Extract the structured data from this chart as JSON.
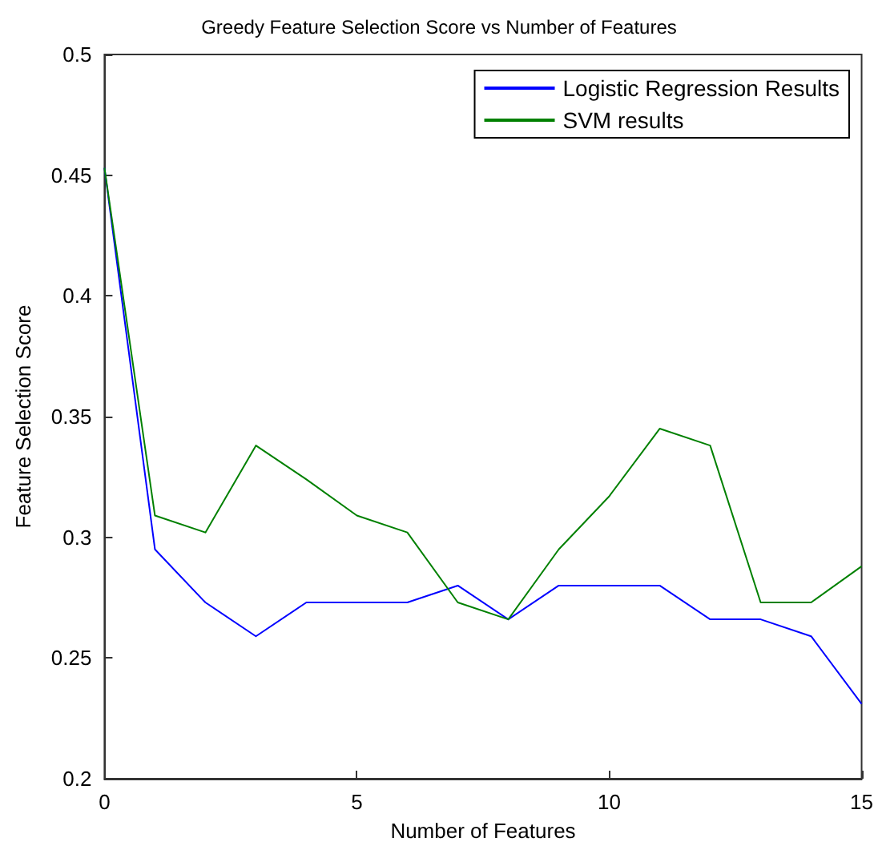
{
  "chart_data": {
    "type": "line",
    "title": "Greedy Feature Selection Score vs Number of Features",
    "xlabel": "Number of Features",
    "ylabel": "Feature Selection Score",
    "x": [
      0,
      1,
      2,
      3,
      4,
      5,
      6,
      7,
      8,
      9,
      10,
      11,
      12,
      13,
      14,
      15
    ],
    "series": [
      {
        "name": "Logistic Regression Results",
        "color": "#0000ff",
        "values": [
          0.453,
          0.295,
          0.273,
          0.259,
          0.273,
          0.273,
          0.273,
          0.28,
          0.266,
          0.28,
          0.28,
          0.28,
          0.266,
          0.266,
          0.259,
          0.231
        ]
      },
      {
        "name": "SVM results",
        "color": "#008000",
        "values": [
          0.453,
          0.309,
          0.302,
          0.338,
          0.324,
          0.309,
          0.302,
          0.273,
          0.266,
          0.295,
          0.317,
          0.345,
          0.338,
          0.273,
          0.273,
          0.288
        ]
      }
    ],
    "xlim": [
      0,
      15
    ],
    "xticks": [
      0,
      5,
      10,
      15
    ],
    "ylim": [
      0.2,
      0.5
    ],
    "yticks": [
      0.2,
      0.25,
      0.3,
      0.35,
      0.4,
      0.45,
      0.5
    ],
    "grid": false,
    "legend": "top right",
    "marker": "none",
    "line_style": "solid"
  }
}
